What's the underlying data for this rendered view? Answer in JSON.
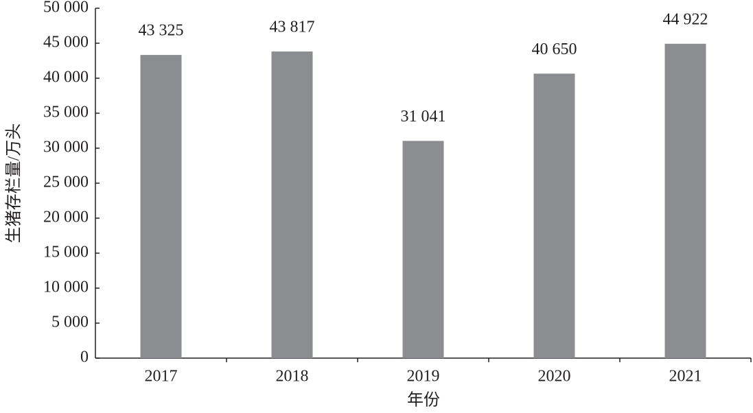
{
  "chart_data": {
    "type": "bar",
    "x_label": "年份",
    "y_label": "生猪存栏量/万头",
    "categories": [
      "2017",
      "2018",
      "2019",
      "2020",
      "2021"
    ],
    "values": [
      43325,
      43817,
      31041,
      40650,
      44922
    ],
    "value_labels": [
      "43 325",
      "43 817",
      "31 041",
      "40 650",
      "44 922"
    ],
    "color": "#8c8d90",
    "ylim": [
      0,
      50000
    ],
    "yticks": [
      0,
      {
        "value": 5000,
        "label": "5 000"
      },
      {
        "value": 10000,
        "label": "10 000"
      },
      {
        "value": 15000,
        "label": "15 000"
      },
      {
        "value": 20000,
        "label": "20 000"
      },
      {
        "value": 25000,
        "label": "25 000"
      },
      {
        "value": 30000,
        "label": "30 000"
      },
      {
        "value": 35000,
        "label": "35 000"
      },
      {
        "value": 40000,
        "label": "40 000"
      },
      {
        "value": 45000,
        "label": "45 000"
      },
      {
        "value": 50000,
        "label": "50 000"
      }
    ],
    "grid": false
  }
}
